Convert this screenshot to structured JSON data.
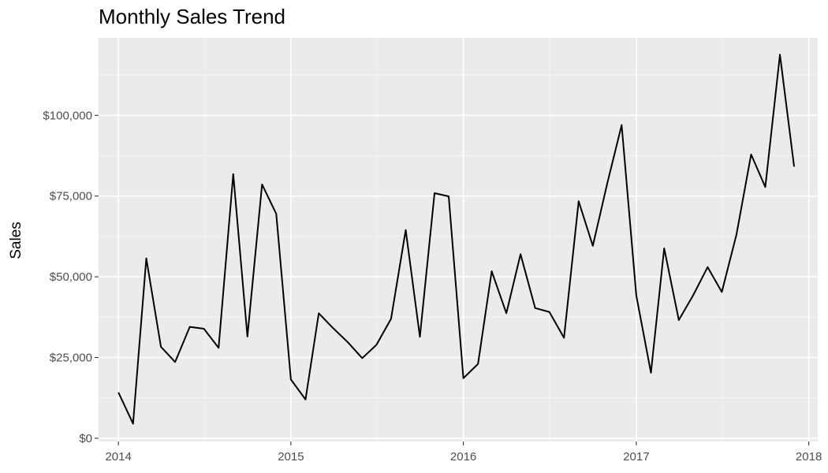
{
  "chart_data": {
    "type": "line",
    "title": "Monthly Sales Trend",
    "xlabel": "",
    "ylabel": "Sales",
    "x_tick_labels": [
      "2014",
      "2015",
      "2016",
      "2017",
      "2018"
    ],
    "y_tick_labels": [
      "$0",
      "$25,000",
      "$50,000",
      "$75,000",
      "$100,000"
    ],
    "y_ticks": [
      0,
      25000,
      50000,
      75000,
      100000
    ],
    "ylim": [
      -1000,
      124000
    ],
    "xlim": [
      "2013-11-20",
      "2018-01-20"
    ],
    "grid": true,
    "legend": "none",
    "colors": {
      "panel_background": "#ebebeb",
      "grid": "#ffffff",
      "line": "#000000"
    },
    "x": [
      "2014-01-01",
      "2014-02-01",
      "2014-03-01",
      "2014-04-01",
      "2014-05-01",
      "2014-06-01",
      "2014-07-01",
      "2014-08-01",
      "2014-09-01",
      "2014-10-01",
      "2014-11-01",
      "2014-12-01",
      "2015-01-01",
      "2015-02-01",
      "2015-03-01",
      "2015-04-01",
      "2015-05-01",
      "2015-06-01",
      "2015-07-01",
      "2015-08-01",
      "2015-09-01",
      "2015-10-01",
      "2015-11-01",
      "2015-12-01",
      "2016-01-01",
      "2016-02-01",
      "2016-03-01",
      "2016-04-01",
      "2016-05-01",
      "2016-06-01",
      "2016-07-01",
      "2016-08-01",
      "2016-09-01",
      "2016-10-01",
      "2016-11-01",
      "2016-12-01",
      "2017-01-01",
      "2017-02-01",
      "2017-03-01",
      "2017-04-01",
      "2017-05-01",
      "2017-06-01",
      "2017-07-01",
      "2017-08-01",
      "2017-09-01",
      "2017-10-01",
      "2017-11-01",
      "2017-12-01"
    ],
    "series": [
      {
        "values": [
          14200,
          4500,
          55700,
          28300,
          23600,
          34500,
          33900,
          28000,
          81800,
          31500,
          78600,
          69500,
          18200,
          12000,
          38700,
          34000,
          29800,
          24800,
          28900,
          37000,
          64500,
          31400,
          75900,
          74900,
          18600,
          23000,
          51700,
          38700,
          57000,
          40300,
          39100,
          31100,
          73400,
          59600,
          79200,
          97000,
          44200,
          20300,
          58800,
          36600,
          44200,
          53000,
          45300,
          63100,
          87900,
          77800,
          118800,
          84100
        ]
      }
    ]
  }
}
